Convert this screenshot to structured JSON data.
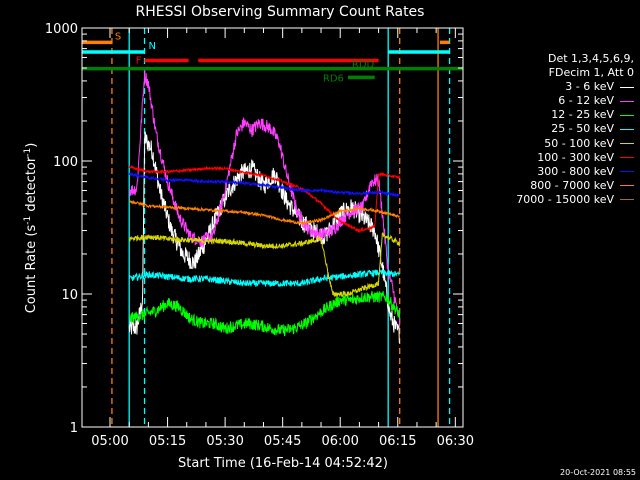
{
  "chart_data": {
    "type": "line",
    "title": "RHESSI Observing Summary Count Rates",
    "xlabel": "Start Time (16-Feb-14 04:52:42)",
    "ylabel_prefix": "Count Rate (s",
    "ylabel_exp": "-1",
    "ylabel_suffix": " detector",
    "ylabel_close": ")",
    "yscale": "log",
    "ylim": [
      1,
      1000
    ],
    "xlim": [
      "04:52:42",
      "06:32:00"
    ],
    "yticks": [
      {
        "value": 1,
        "label": "1"
      },
      {
        "value": 10,
        "label": "10"
      },
      {
        "value": 100,
        "label": "100"
      },
      {
        "value": 1000,
        "label": "1000"
      }
    ],
    "xticks": [
      {
        "value": "05:00",
        "label": "05:00"
      },
      {
        "value": "05:15",
        "label": "05:15"
      },
      {
        "value": "05:30",
        "label": "05:30"
      },
      {
        "value": "05:45",
        "label": "05:45"
      },
      {
        "value": "06:00",
        "label": "06:00"
      },
      {
        "value": "06:15",
        "label": "06:15"
      },
      {
        "value": "06:30",
        "label": "06:30"
      }
    ],
    "legend": {
      "position": "right",
      "header": [
        "Det 1,3,4,5,6,9,",
        "FDecim 1, Att 0"
      ],
      "entries": [
        {
          "label": "3 - 6 keV",
          "color": "#ffffff"
        },
        {
          "label": "6 - 12 keV",
          "color": "#ff40ff"
        },
        {
          "label": "12 - 25 keV",
          "color": "#00ff00"
        },
        {
          "label": "25 - 50 keV",
          "color": "#00ffff"
        },
        {
          "label": "50 - 100 keV",
          "color": "#d6d600"
        },
        {
          "label": "100 - 300 keV",
          "color": "#ff0000"
        },
        {
          "label": "300 - 800 keV",
          "color": "#1010ff"
        },
        {
          "label": "800 - 7000 keV",
          "color": "#ff8000"
        },
        {
          "label": "7000 - 15000 keV",
          "color": "#a06a3a"
        }
      ]
    },
    "flag_bars": [
      {
        "label": "S",
        "color": "#ff8000",
        "level": 780,
        "segments": [
          [
            "04:52:42",
            "05:00:30"
          ],
          [
            "06:26:00",
            "06:28:30"
          ]
        ]
      },
      {
        "label": "N",
        "color": "#00ffff",
        "level": 660,
        "segments": [
          [
            "04:52:42",
            "05:09:00"
          ],
          [
            "06:12:30",
            "06:28:30"
          ]
        ]
      },
      {
        "label": "F",
        "color": "#ff0000",
        "level": 570,
        "segments": [
          [
            "05:09:00",
            "05:20:30"
          ],
          [
            "05:23:00",
            "06:10:00"
          ]
        ]
      },
      {
        "label": "RDD",
        "color": "#008000",
        "level": 495,
        "segments": [
          [
            "04:52:42",
            "06:32:00"
          ]
        ]
      },
      {
        "label": "RD6",
        "color": "#008000",
        "level": 425,
        "segments": [
          [
            "06:02:00",
            "06:09:00"
          ]
        ]
      }
    ],
    "event_lines": [
      {
        "time": "05:00:30",
        "color": "#ff8000",
        "style": "dashed"
      },
      {
        "time": "05:05:00",
        "color": "#00ffff",
        "style": "solid"
      },
      {
        "time": "05:09:00",
        "color": "#00ffff",
        "style": "dashed"
      },
      {
        "time": "06:12:30",
        "color": "#00ffff",
        "style": "solid"
      },
      {
        "time": "06:15:30",
        "color": "#ff8000",
        "style": "dashed"
      },
      {
        "time": "06:25:30",
        "color": "#ff8000",
        "style": "solid"
      },
      {
        "time": "06:28:30",
        "color": "#00ffff",
        "style": "dashed"
      }
    ],
    "series": [
      {
        "name": "3 - 6 keV",
        "color": "#ffffff",
        "noise": 0.14,
        "points": [
          [
            "05:05:00",
            5.5
          ],
          [
            "05:07:00",
            5.6
          ],
          [
            "05:08:30",
            9
          ],
          [
            "05:09:00",
            150
          ],
          [
            "05:11:00",
            120
          ],
          [
            "05:13:00",
            60
          ],
          [
            "05:16:00",
            30
          ],
          [
            "05:19:00",
            20
          ],
          [
            "05:22:00",
            17
          ],
          [
            "05:25:00",
            25
          ],
          [
            "05:28:00",
            40
          ],
          [
            "05:31:00",
            60
          ],
          [
            "05:34:00",
            80
          ],
          [
            "05:37:00",
            88
          ],
          [
            "05:40:00",
            65
          ],
          [
            "05:43:00",
            80
          ],
          [
            "05:46:00",
            50
          ],
          [
            "05:50:00",
            35
          ],
          [
            "05:53:00",
            30
          ],
          [
            "05:56:00",
            27
          ],
          [
            "06:00:00",
            40
          ],
          [
            "06:03:00",
            45
          ],
          [
            "06:07:00",
            35
          ],
          [
            "06:09:00",
            30
          ],
          [
            "06:11:00",
            16
          ],
          [
            "06:13:00",
            7
          ],
          [
            "06:14:30",
            5.5
          ],
          [
            "06:15:30",
            5
          ]
        ]
      },
      {
        "name": "6 - 12 keV",
        "color": "#ff40ff",
        "noise": 0.1,
        "points": [
          [
            "05:05:00",
            60
          ],
          [
            "05:07:00",
            62
          ],
          [
            "05:09:00",
            450
          ],
          [
            "05:10:00",
            380
          ],
          [
            "05:12:00",
            160
          ],
          [
            "05:15:00",
            70
          ],
          [
            "05:18:00",
            38
          ],
          [
            "05:21:00",
            27
          ],
          [
            "05:24:00",
            25
          ],
          [
            "05:27:00",
            28
          ],
          [
            "05:30:00",
            60
          ],
          [
            "05:33:00",
            160
          ],
          [
            "05:35:00",
            195
          ],
          [
            "05:37:00",
            170
          ],
          [
            "05:39:00",
            195
          ],
          [
            "05:42:00",
            175
          ],
          [
            "05:44:00",
            140
          ],
          [
            "05:46:00",
            80
          ],
          [
            "05:49:00",
            40
          ],
          [
            "05:52:00",
            30
          ],
          [
            "05:55:00",
            28
          ],
          [
            "05:58:00",
            30
          ],
          [
            "06:01:00",
            38
          ],
          [
            "06:03:00",
            42
          ],
          [
            "06:06:00",
            45
          ],
          [
            "06:08:00",
            70
          ],
          [
            "06:10:00",
            72
          ],
          [
            "06:11:00",
            40
          ],
          [
            "06:12:30",
            15
          ],
          [
            "06:14:00",
            10
          ],
          [
            "06:15:30",
            6
          ]
        ]
      },
      {
        "name": "12 - 25 keV",
        "color": "#00ff00",
        "noise": 0.09,
        "points": [
          [
            "05:05:00",
            6.5
          ],
          [
            "05:09:00",
            7
          ],
          [
            "05:12:00",
            7.5
          ],
          [
            "05:15:00",
            8.5
          ],
          [
            "05:18:00",
            8
          ],
          [
            "05:21:00",
            6.5
          ],
          [
            "05:24:00",
            6
          ],
          [
            "05:27:00",
            6
          ],
          [
            "05:30:00",
            5.5
          ],
          [
            "05:33:00",
            5.8
          ],
          [
            "05:36:00",
            6
          ],
          [
            "05:39:00",
            5.8
          ],
          [
            "05:42:00",
            5.5
          ],
          [
            "05:45:00",
            5.3
          ],
          [
            "05:48:00",
            5.5
          ],
          [
            "05:51:00",
            6
          ],
          [
            "05:54:00",
            7
          ],
          [
            "05:57:00",
            8
          ],
          [
            "06:00:00",
            9
          ],
          [
            "06:03:00",
            9
          ],
          [
            "06:06:00",
            9.5
          ],
          [
            "06:09:00",
            9.5
          ],
          [
            "06:12:00",
            9.5
          ],
          [
            "06:15:30",
            7
          ]
        ]
      },
      {
        "name": "25 - 50 keV",
        "color": "#00ffff",
        "noise": 0.05,
        "points": [
          [
            "05:05:00",
            13
          ],
          [
            "05:10:00",
            14
          ],
          [
            "05:15:00",
            13.5
          ],
          [
            "05:20:00",
            13
          ],
          [
            "05:25:00",
            13
          ],
          [
            "05:30:00",
            12.5
          ],
          [
            "05:35:00",
            12
          ],
          [
            "05:40:00",
            12
          ],
          [
            "05:45:00",
            12
          ],
          [
            "05:50:00",
            12
          ],
          [
            "05:55:00",
            13
          ],
          [
            "06:00:00",
            13.5
          ],
          [
            "06:05:00",
            14
          ],
          [
            "06:10:00",
            14.5
          ],
          [
            "06:15:30",
            14
          ]
        ]
      },
      {
        "name": "50 - 100 keV",
        "color": "#d6d600",
        "noise": 0.04,
        "points": [
          [
            "05:05:00",
            26
          ],
          [
            "05:10:00",
            27
          ],
          [
            "05:15:00",
            26
          ],
          [
            "05:20:00",
            25.5
          ],
          [
            "05:25:00",
            25
          ],
          [
            "05:30:00",
            25
          ],
          [
            "05:35:00",
            24
          ],
          [
            "05:40:00",
            23
          ],
          [
            "05:45:00",
            23
          ],
          [
            "05:50:00",
            24
          ],
          [
            "05:55:00",
            26
          ],
          [
            "05:58:00",
            10
          ],
          [
            "06:02:00",
            10
          ],
          [
            "06:06:00",
            11
          ],
          [
            "06:10:00",
            12
          ],
          [
            "06:11:00",
            28
          ],
          [
            "06:15:30",
            24
          ]
        ]
      },
      {
        "name": "100 - 300 keV",
        "color": "#ff0000",
        "noise": 0.02,
        "points": [
          [
            "05:05:00",
            90
          ],
          [
            "05:10:00",
            83
          ],
          [
            "05:15:00",
            83
          ],
          [
            "05:20:00",
            85
          ],
          [
            "05:25:00",
            88
          ],
          [
            "05:30:00",
            88
          ],
          [
            "05:35:00",
            82
          ],
          [
            "05:40:00",
            78
          ],
          [
            "05:45:00",
            70
          ],
          [
            "05:50:00",
            62
          ],
          [
            "05:55:00",
            48
          ],
          [
            "06:00:00",
            35
          ],
          [
            "06:05:00",
            30
          ],
          [
            "06:09:00",
            32
          ],
          [
            "06:10:00",
            80
          ],
          [
            "06:15:30",
            75
          ]
        ]
      },
      {
        "name": "300 - 800 keV",
        "color": "#1010ff",
        "noise": 0.02,
        "points": [
          [
            "05:05:00",
            80
          ],
          [
            "05:10:00",
            75
          ],
          [
            "05:15:00",
            72
          ],
          [
            "05:20:00",
            72
          ],
          [
            "05:25:00",
            70
          ],
          [
            "05:30:00",
            70
          ],
          [
            "05:35:00",
            68
          ],
          [
            "05:40:00",
            66
          ],
          [
            "05:45:00",
            63
          ],
          [
            "05:50:00",
            60
          ],
          [
            "05:55:00",
            60
          ],
          [
            "06:00:00",
            58
          ],
          [
            "06:05:00",
            57
          ],
          [
            "06:10:00",
            58
          ],
          [
            "06:15:30",
            55
          ]
        ]
      },
      {
        "name": "800 - 7000 keV",
        "color": "#ff8000",
        "noise": 0.02,
        "points": [
          [
            "05:05:00",
            50
          ],
          [
            "05:10:00",
            46
          ],
          [
            "05:15:00",
            45
          ],
          [
            "05:20:00",
            44
          ],
          [
            "05:25:00",
            43
          ],
          [
            "05:30:00",
            42
          ],
          [
            "05:35:00",
            41
          ],
          [
            "05:40:00",
            39
          ],
          [
            "05:45:00",
            36
          ],
          [
            "05:50:00",
            34
          ],
          [
            "05:55:00",
            36
          ],
          [
            "06:00:00",
            42
          ],
          [
            "06:05:00",
            44
          ],
          [
            "06:10:00",
            42
          ],
          [
            "06:15:30",
            38
          ]
        ]
      }
    ]
  },
  "footer": {
    "timestamp": "20-Oct-2021 08:55"
  }
}
